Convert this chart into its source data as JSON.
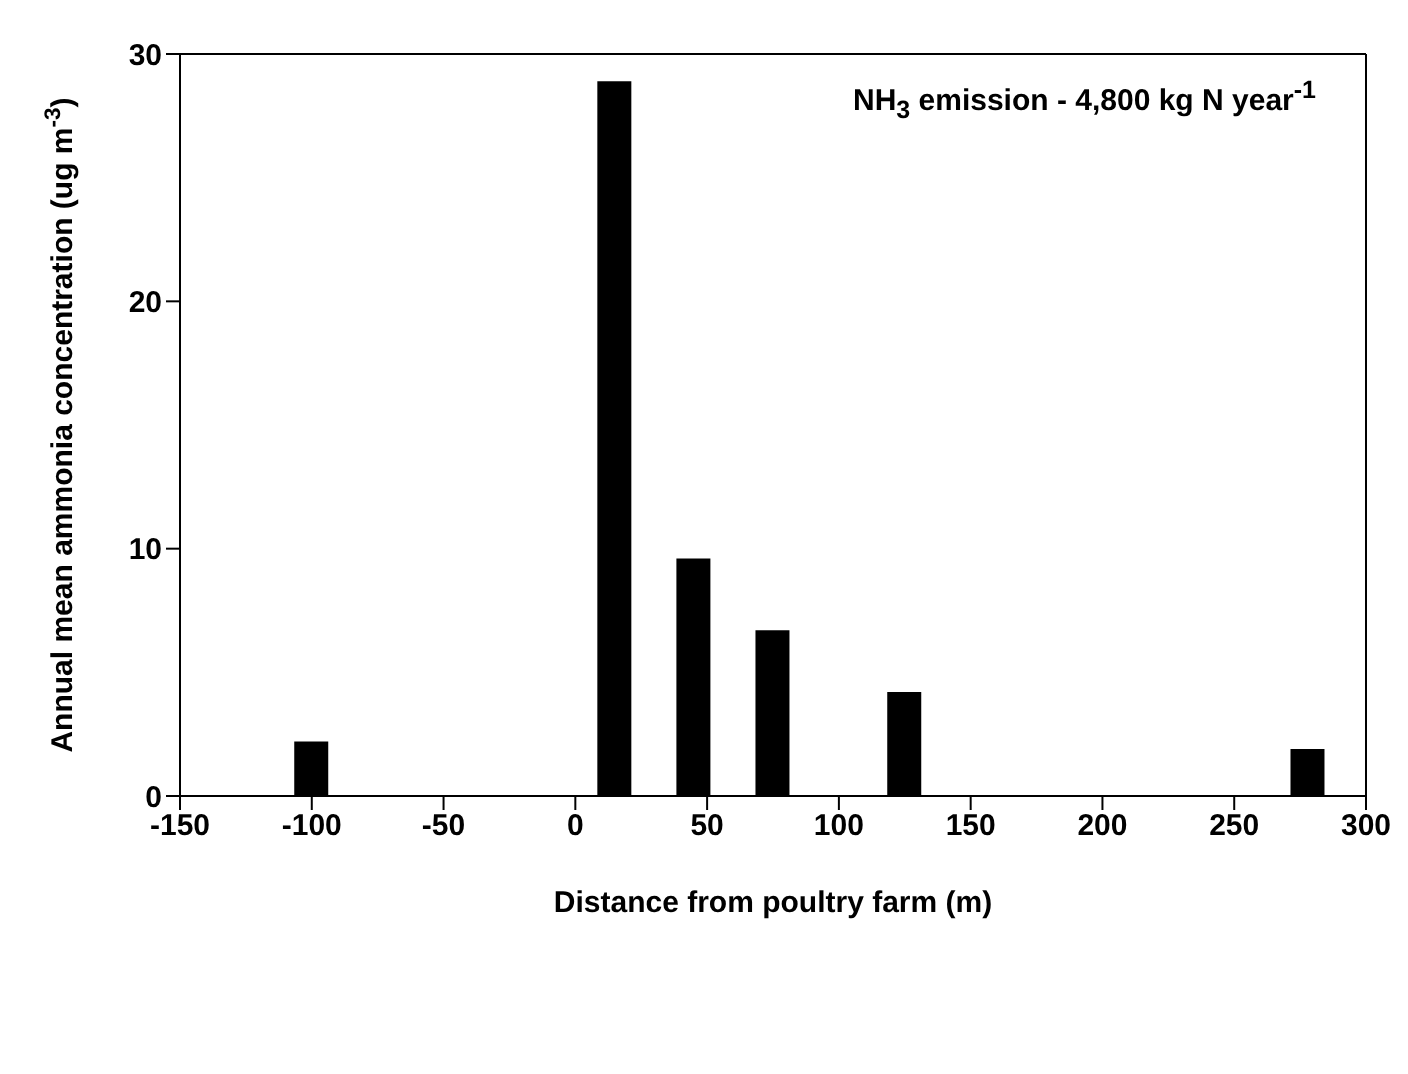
{
  "chart_data": {
    "type": "bar",
    "xlabel": "Distance from poultry farm (m)",
    "ylabel": "Annual mean ammonia concentration (ug m$^{-3}$)",
    "annotations": [
      "NH$_{3}$ emission - 4,800 kg N year$^{-1}$"
    ],
    "x": [
      -100,
      15,
      45,
      75,
      125,
      278
    ],
    "values": [
      2.2,
      28.9,
      9.6,
      6.7,
      4.2,
      1.9
    ],
    "color": "#000000",
    "xlim": [
      -150,
      300
    ],
    "xticks": [
      -150,
      -100,
      -50,
      0,
      50,
      100,
      150,
      200,
      250,
      300
    ],
    "ylim": [
      0,
      30
    ],
    "yticks": [
      0,
      10,
      20,
      30
    ]
  }
}
